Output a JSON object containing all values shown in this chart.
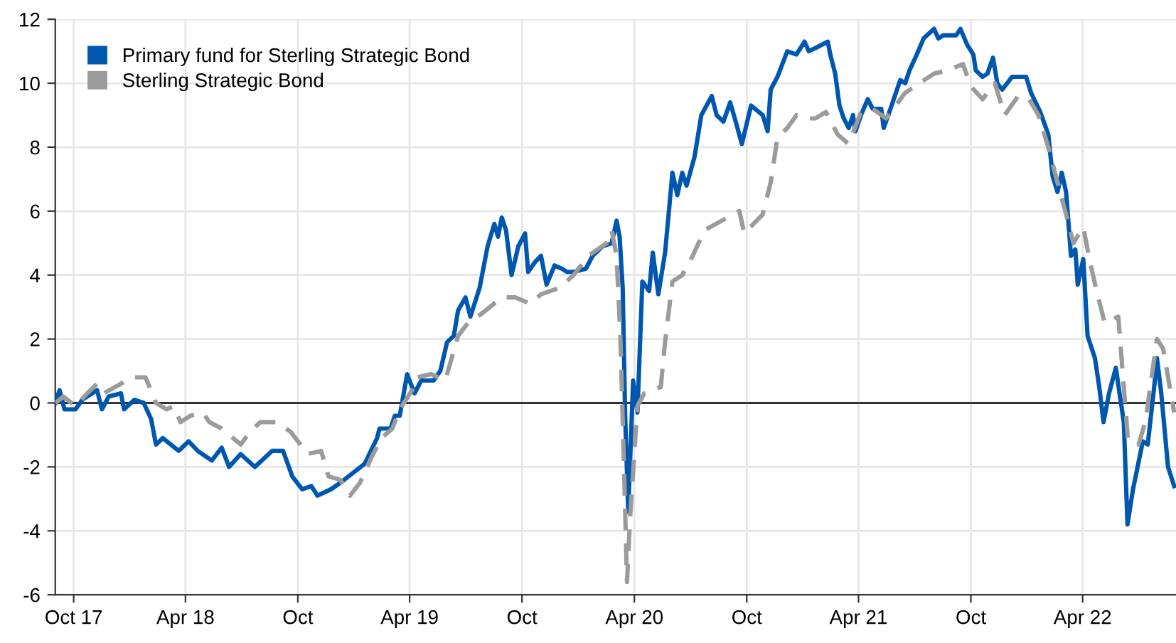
{
  "chart_data": {
    "type": "line",
    "xlim": [
      "2017-09-01",
      "2022-08-31"
    ],
    "xticks": [
      {
        "value": "2017-10-01",
        "label": "Oct 17"
      },
      {
        "value": "2018-04-01",
        "label": "Apr 18"
      },
      {
        "value": "2018-10-01",
        "label": "Oct"
      },
      {
        "value": "2019-04-01",
        "label": "Apr 19"
      },
      {
        "value": "2019-10-01",
        "label": "Oct"
      },
      {
        "value": "2020-04-01",
        "label": "Apr 20"
      },
      {
        "value": "2020-10-01",
        "label": "Oct"
      },
      {
        "value": "2021-04-01",
        "label": "Apr 21"
      },
      {
        "value": "2021-10-01",
        "label": "Oct"
      },
      {
        "value": "2022-04-01",
        "label": "Apr 22"
      }
    ],
    "ylim": [
      -6,
      12
    ],
    "yticks": [
      -6,
      -4,
      -2,
      0,
      2,
      4,
      6,
      8,
      10,
      12
    ],
    "grid": true,
    "legend": "top left",
    "ref_lines": [
      {
        "axis": "y",
        "value": 0,
        "color": "#333333"
      }
    ],
    "series": [
      {
        "name": "Primary fund for Sterling Strategic Bond",
        "color": "#0057b0",
        "line_style": "solid",
        "x": [
          "2017-09-01",
          "2017-09-08",
          "2017-09-16",
          "2017-10-04",
          "2017-10-15",
          "2017-11-08",
          "2017-11-16",
          "2017-11-27",
          "2017-12-17",
          "2017-12-22",
          "2018-01-08",
          "2018-01-23",
          "2018-02-04",
          "2018-02-12",
          "2018-02-23",
          "2018-03-21",
          "2018-04-06",
          "2018-04-21",
          "2018-05-14",
          "2018-05-30",
          "2018-06-11",
          "2018-06-30",
          "2018-07-23",
          "2018-08-20",
          "2018-09-07",
          "2018-09-22",
          "2018-10-08",
          "2018-10-23",
          "2018-11-02",
          "2018-11-24",
          "2018-12-09",
          "2018-12-29",
          "2019-01-18",
          "2019-02-07",
          "2019-02-11",
          "2019-03-01",
          "2019-03-08",
          "2019-03-16",
          "2019-03-28",
          "2019-04-09",
          "2019-04-20",
          "2019-05-10",
          "2019-05-21",
          "2019-06-01",
          "2019-06-12",
          "2019-06-19",
          "2019-07-01",
          "2019-07-09",
          "2019-07-24",
          "2019-08-06",
          "2019-08-17",
          "2019-08-23",
          "2019-08-29",
          "2019-09-05",
          "2019-09-14",
          "2019-09-25",
          "2019-10-06",
          "2019-10-11",
          "2019-10-22",
          "2019-11-01",
          "2019-11-10",
          "2019-11-23",
          "2019-12-05",
          "2019-12-13",
          "2019-12-24",
          "2020-01-13",
          "2020-01-24",
          "2020-02-09",
          "2020-02-24",
          "2020-03-03",
          "2020-03-08",
          "2020-03-13",
          "2020-03-17",
          "2020-03-22",
          "2020-03-30",
          "2020-04-06",
          "2020-04-14",
          "2020-04-25",
          "2020-05-01",
          "2020-05-10",
          "2020-05-21",
          "2020-06-02",
          "2020-06-10",
          "2020-06-18",
          "2020-06-25",
          "2020-07-08",
          "2020-07-19",
          "2020-08-05",
          "2020-08-13",
          "2020-08-24",
          "2020-09-04",
          "2020-09-13",
          "2020-09-23",
          "2020-10-08",
          "2020-10-27",
          "2020-11-04",
          "2020-11-09",
          "2020-11-20",
          "2020-12-06",
          "2020-12-21",
          "2021-01-03",
          "2021-01-10",
          "2021-01-21",
          "2021-02-10",
          "2021-02-14",
          "2021-02-22",
          "2021-03-01",
          "2021-03-08",
          "2021-03-16",
          "2021-03-23",
          "2021-03-27",
          "2021-04-05",
          "2021-04-16",
          "2021-04-24",
          "2021-05-08",
          "2021-05-12",
          "2021-05-23",
          "2021-06-08",
          "2021-06-16",
          "2021-06-23",
          "2021-07-05",
          "2021-07-16",
          "2021-08-02",
          "2021-08-09",
          "2021-08-17",
          "2021-09-07",
          "2021-09-14",
          "2021-09-25",
          "2021-10-05",
          "2021-10-09",
          "2021-10-20",
          "2021-10-28",
          "2021-11-06",
          "2021-11-13",
          "2021-11-21",
          "2021-12-07",
          "2021-12-30",
          "2022-01-07",
          "2022-01-22",
          "2022-02-04",
          "2022-02-11",
          "2022-02-19",
          "2022-02-26",
          "2022-03-05",
          "2022-03-13",
          "2022-03-20",
          "2022-03-24",
          "2022-04-02",
          "2022-04-09",
          "2022-04-21",
          "2022-04-28",
          "2022-05-05",
          "2022-05-14",
          "2022-05-25",
          "2022-06-07",
          "2022-06-13",
          "2022-06-22",
          "2022-07-08",
          "2022-07-16",
          "2022-07-27",
          "2022-07-31",
          "2022-08-07",
          "2022-08-18",
          "2022-08-28"
        ],
        "values": [
          0,
          0.4,
          -0.2,
          -0.2,
          0.1,
          0.4,
          -0.2,
          0.2,
          0.3,
          -0.2,
          0.1,
          0,
          -0.5,
          -1.3,
          -1.1,
          -1.5,
          -1.2,
          -1.5,
          -1.8,
          -1.4,
          -2.0,
          -1.6,
          -2.0,
          -1.5,
          -1.5,
          -2.3,
          -2.7,
          -2.6,
          -2.9,
          -2.7,
          -2.5,
          -2.2,
          -1.9,
          -1.1,
          -0.8,
          -0.8,
          -0.4,
          -0.4,
          0.9,
          0.3,
          0.7,
          0.7,
          1.0,
          1.9,
          2.1,
          2.9,
          3.3,
          2.7,
          3.6,
          4.9,
          5.6,
          5.2,
          5.8,
          5.4,
          4.0,
          4.9,
          5.3,
          4.1,
          4.4,
          4.6,
          3.7,
          4.3,
          4.2,
          4.1,
          4.1,
          4.2,
          4.6,
          4.9,
          5.0,
          5.7,
          5.2,
          3.6,
          -0.4,
          -3.4,
          0.7,
          -0.3,
          3.8,
          3.5,
          4.7,
          3.4,
          4.7,
          7.2,
          6.5,
          7.2,
          6.8,
          7.7,
          9.0,
          9.6,
          9.0,
          8.8,
          9.4,
          8.8,
          8.1,
          9.3,
          9.0,
          8.5,
          9.8,
          10.2,
          11.0,
          10.9,
          11.3,
          11.0,
          11.1,
          11.3,
          10.9,
          10.3,
          9.3,
          8.9,
          8.6,
          9.0,
          8.5,
          9.0,
          9.5,
          9.2,
          9.2,
          8.6,
          9.2,
          10.1,
          10.0,
          10.4,
          10.9,
          11.4,
          11.7,
          11.4,
          11.5,
          11.5,
          11.7,
          11.2,
          10.9,
          10.4,
          10.2,
          10.3,
          10.8,
          10.0,
          9.8,
          10.2,
          10.2,
          9.7,
          9.1,
          8.4,
          7.1,
          6.6,
          7.2,
          6.6,
          4.6,
          4.8,
          3.7,
          4.5,
          2.1,
          1.4,
          0.5,
          -0.6,
          0.3,
          1.1,
          -0.6,
          -3.8,
          -2.7,
          -1.2,
          -1.3,
          0.6,
          1.4,
          0.3,
          -2.0,
          -2.6
        ]
      },
      {
        "name": "Sterling Strategic Bond",
        "color": "#9b9b9b",
        "line_style": "dashed",
        "x": [
          "2017-09-01",
          "2017-09-14",
          "2017-10-04",
          "2017-10-23",
          "2017-11-08",
          "2017-11-19",
          "2017-12-17",
          "2018-01-01",
          "2018-01-26",
          "2018-02-12",
          "2018-03-01",
          "2018-03-13",
          "2018-03-24",
          "2018-04-09",
          "2018-04-29",
          "2018-05-10",
          "2018-05-30",
          "2018-06-30",
          "2018-07-15",
          "2018-08-01",
          "2018-08-28",
          "2018-09-19",
          "2018-10-05",
          "2018-10-16",
          "2018-11-08",
          "2018-11-20",
          "2018-12-09",
          "2018-12-25",
          "2019-01-10",
          "2019-01-29",
          "2019-02-14",
          "2019-03-04",
          "2019-03-16",
          "2019-04-05",
          "2019-04-13",
          "2019-05-06",
          "2019-05-29",
          "2019-06-19",
          "2019-07-05",
          "2019-07-28",
          "2019-08-29",
          "2019-09-20",
          "2019-10-15",
          "2019-11-01",
          "2019-12-01",
          "2019-12-24",
          "2020-01-17",
          "2020-02-16",
          "2020-02-24",
          "2020-03-03",
          "2020-03-09",
          "2020-03-15",
          "2020-03-20",
          "2020-03-25",
          "2020-04-06",
          "2020-04-17",
          "2020-05-14",
          "2020-05-21",
          "2020-06-02",
          "2020-06-18",
          "2020-07-05",
          "2020-07-24",
          "2020-08-21",
          "2020-09-19",
          "2020-09-27",
          "2020-10-27",
          "2020-11-09",
          "2020-11-20",
          "2020-12-06",
          "2020-12-21",
          "2021-01-06",
          "2021-01-21",
          "2021-02-07",
          "2021-02-26",
          "2021-03-16",
          "2021-04-05",
          "2021-04-24",
          "2021-05-16",
          "2021-06-16",
          "2021-07-09",
          "2021-08-02",
          "2021-08-24",
          "2021-09-18",
          "2021-10-01",
          "2021-10-20",
          "2021-11-09",
          "2021-11-25",
          "2021-12-17",
          "2022-01-04",
          "2022-01-19",
          "2022-02-04",
          "2022-02-19",
          "2022-03-05",
          "2022-03-17",
          "2022-04-02",
          "2022-04-13",
          "2022-04-25",
          "2022-05-07",
          "2022-05-29",
          "2022-06-14",
          "2022-07-01",
          "2022-07-12",
          "2022-07-31",
          "2022-08-10",
          "2022-08-28"
        ],
        "values": [
          0,
          0.2,
          -0.1,
          0.3,
          0.6,
          0.3,
          0.6,
          0.8,
          0.8,
          0,
          -0.2,
          -0.1,
          -0.6,
          -0.4,
          -0.3,
          -0.6,
          -0.8,
          -1.3,
          -0.9,
          -0.6,
          -0.6,
          -0.9,
          -1.3,
          -1.6,
          -1.5,
          -2.3,
          -2.4,
          -2.9,
          -2.5,
          -1.7,
          -1.1,
          -0.8,
          -0.2,
          0.4,
          0.8,
          0.9,
          0.7,
          2.1,
          2.5,
          2.8,
          3.3,
          3.3,
          3.1,
          3.4,
          3.6,
          4.0,
          4.6,
          5.0,
          5.4,
          4.6,
          2.2,
          -1.9,
          -5.6,
          -3.6,
          -0.1,
          0.3,
          0.5,
          1.9,
          3.8,
          4.0,
          4.6,
          5.4,
          5.7,
          6.0,
          5.3,
          5.9,
          6.9,
          8.3,
          8.6,
          9.0,
          8.9,
          8.9,
          9.1,
          8.4,
          8.1,
          9.1,
          9.2,
          8.9,
          9.7,
          10.0,
          10.3,
          10.4,
          10.6,
          9.9,
          9.5,
          10.0,
          9.0,
          9.6,
          9.5,
          9.0,
          8.0,
          6.9,
          5.9,
          5.0,
          5.5,
          4.4,
          3.4,
          2.5,
          2.7,
          -1.2,
          -1.3,
          -0.6,
          2.0,
          1.7,
          -0.3
        ]
      }
    ]
  }
}
